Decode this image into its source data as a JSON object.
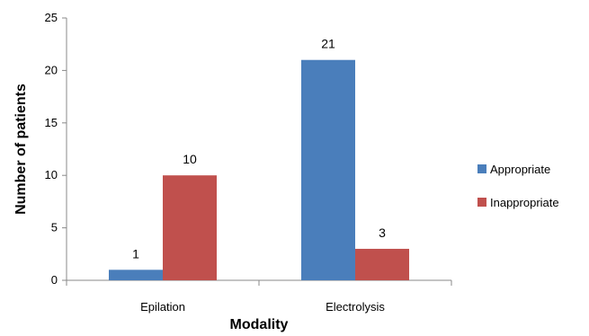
{
  "chart_data": {
    "type": "bar",
    "title": "",
    "xlabel": "Modality",
    "ylabel": "Number of patients",
    "categories": [
      "Epilation",
      "Electrolysis"
    ],
    "series": [
      {
        "name": "Appropriate",
        "values": [
          1,
          21
        ],
        "color": "#4a7ebb"
      },
      {
        "name": "Inappropriate",
        "values": [
          10,
          3
        ],
        "color": "#c0504d"
      }
    ],
    "ylim": [
      0,
      25
    ],
    "yticks": [
      0,
      5,
      10,
      15,
      20,
      25
    ],
    "grid": false,
    "legend": "right",
    "data_labels": true
  }
}
